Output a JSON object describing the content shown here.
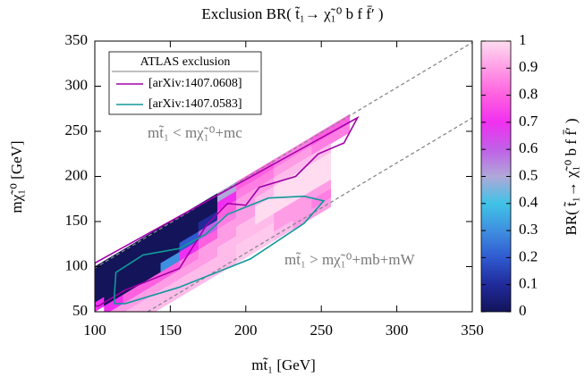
{
  "chart_data": {
    "type": "heatmap",
    "title": "Exclusion BR( t̃₁→ χ̃₁⁰ b f f̄′ )",
    "xlabel": "mt̃₁ [GeV]",
    "ylabel": "mχ̃₁⁰ [GeV]",
    "xlim": [
      100,
      350
    ],
    "xticks": [
      100,
      150,
      200,
      250,
      300,
      350
    ],
    "ylim": [
      50,
      350
    ],
    "yticks": [
      50,
      100,
      150,
      200,
      250,
      300,
      350
    ],
    "heatmap": {
      "x": [
        100,
        112.5,
        125,
        137.5,
        150,
        162.5,
        175,
        187.5,
        200,
        212.5,
        225,
        237.5,
        250,
        262.5
      ],
      "dm": [
        5,
        15,
        25,
        35,
        45,
        55,
        65,
        75,
        85
      ],
      "values": [
        [
          0,
          0,
          0,
          0,
          0.7,
          null,
          null,
          null,
          null
        ],
        [
          0,
          0,
          0,
          0,
          0,
          0.7,
          0.9,
          null,
          null
        ],
        [
          0,
          0,
          0,
          0,
          0,
          0.8,
          0.9,
          0.95,
          null
        ],
        [
          0,
          0,
          0,
          0,
          0,
          0.8,
          0.9,
          0.95,
          0.95
        ],
        [
          0,
          0,
          0,
          0,
          0.3,
          0.8,
          0.9,
          0.95,
          0.95
        ],
        [
          0,
          0,
          0,
          0.2,
          0.7,
          0.85,
          0.9,
          0.95,
          0.95
        ],
        [
          0,
          0,
          0.1,
          0.6,
          0.8,
          0.9,
          0.9,
          0.95,
          0.95
        ],
        [
          0.5,
          0.7,
          0.8,
          0.85,
          0.9,
          0.9,
          0.95,
          0.95,
          0.95
        ],
        [
          0.8,
          0.85,
          0.9,
          0.9,
          0.9,
          0.95,
          0.95,
          0.97,
          0.97
        ],
        [
          0.8,
          0.85,
          0.9,
          0.95,
          1,
          1,
          0.95,
          0.97,
          0.97
        ],
        [
          0.85,
          0.9,
          0.95,
          1,
          1,
          1,
          0.9,
          0.9,
          0.95
        ],
        [
          0.85,
          0.9,
          0.95,
          1,
          1,
          1,
          0.9,
          0.9,
          0.9
        ],
        [
          0.8,
          0.85,
          0.95,
          1,
          1,
          1,
          0.9,
          0.85,
          0.9
        ],
        [
          0.8,
          0.85,
          null,
          null,
          null,
          null,
          null,
          null,
          null
        ]
      ]
    },
    "colorbar": {
      "label": "BR( t̃₁→ χ̃₁⁰ b f f̄′ )",
      "lim": [
        0,
        1
      ],
      "ticks": [
        0,
        0.1,
        0.2,
        0.3,
        0.4,
        0.5,
        0.6,
        0.7,
        0.8,
        0.9,
        1
      ],
      "colors": [
        "#14145a",
        "#202a9a",
        "#2f5ad0",
        "#3f8fe0",
        "#3fc3e6",
        "#b0a8d8",
        "#c060e8",
        "#f030f0",
        "#ff60e0",
        "#ff9ce6",
        "#ffdcf0"
      ]
    },
    "boundaries": [
      {
        "x": [
          100,
          350
        ],
        "y": [
          98.5,
          348.5
        ],
        "color": "#888888"
      },
      {
        "x": [
          135,
          350
        ],
        "y": [
          50,
          265
        ],
        "color": "#888888"
      }
    ],
    "annotations": [
      "mt̃₁ < mχ̃₁⁰+mc",
      "mt̃₁ > mχ̃₁⁰+mb+mW"
    ],
    "legend_title": "ATLAS exclusion",
    "series": [
      {
        "name": "[arXiv:1407.0608]",
        "color": "#a000a8",
        "x": [
          102,
          120,
          156,
          174,
          188,
          200,
          209,
          233,
          248,
          265,
          274,
          100,
          100,
          102
        ],
        "y": [
          56,
          74,
          98,
          146,
          170,
          168,
          188,
          200,
          225,
          237,
          265,
          104,
          57,
          56
        ]
      },
      {
        "name": "[arXiv:1407.0583]",
        "color": "#109898",
        "x": [
          113,
          114,
          132,
          155.7,
          173.5,
          188,
          215,
          238.6,
          251.6,
          238.6,
          203,
          155.7,
          120,
          113,
          113
        ],
        "y": [
          69,
          93.6,
          113,
          120,
          136,
          158,
          176,
          178,
          173,
          148,
          108.5,
          77,
          59,
          59,
          69
        ]
      }
    ]
  }
}
